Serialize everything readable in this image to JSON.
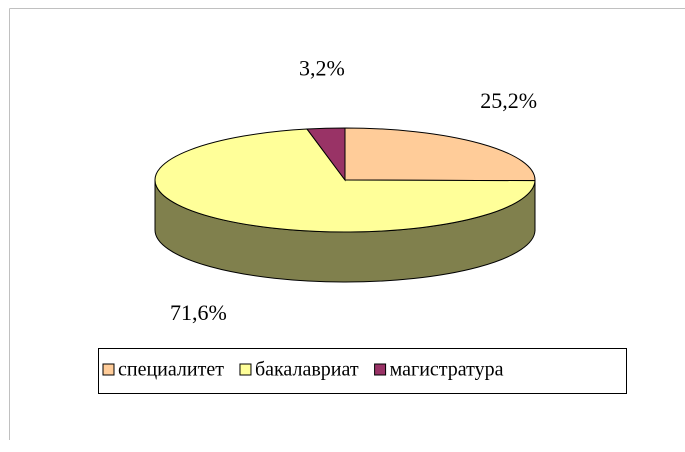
{
  "chart_data": {
    "type": "pie",
    "three_d": true,
    "categories": [
      "специалитет",
      "бакалавриат",
      "магистратура"
    ],
    "values": [
      25.2,
      71.6,
      3.2
    ],
    "value_labels": [
      "25,2%",
      "71,6%",
      "3,2%"
    ],
    "colors": [
      "#FFCC99",
      "#FFFF99",
      "#993366"
    ],
    "legend": "bottom"
  }
}
